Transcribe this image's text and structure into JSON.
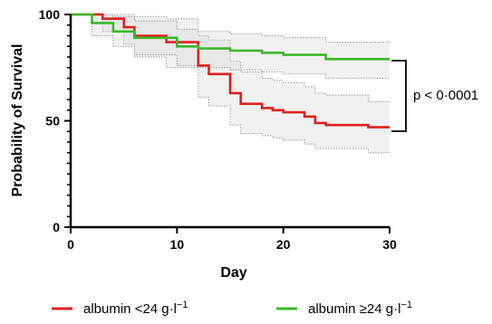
{
  "chart_data": {
    "type": "line",
    "step": true,
    "xlabel": "Day",
    "ylabel": "Probability of Survival",
    "xlim": [
      0,
      30
    ],
    "ylim": [
      0,
      100
    ],
    "x_ticks": [
      0,
      10,
      20,
      30
    ],
    "y_ticks": [
      0,
      50,
      100
    ],
    "grid": false,
    "legend_position": "bottom",
    "annotation": {
      "text": "p < 0·0001"
    },
    "series": [
      {
        "name": "albumin <24 g·l",
        "name_sup": "−1",
        "color": "#e02020",
        "x": [
          0,
          3,
          5,
          6,
          9,
          12,
          13,
          15,
          16,
          18,
          19,
          20,
          22,
          23,
          24,
          28,
          30
        ],
        "y": [
          100,
          98,
          94,
          90,
          87,
          76,
          72,
          63,
          58,
          56,
          55,
          54,
          52,
          49,
          48,
          47,
          47
        ],
        "ci_upper": [
          100,
          100,
          100,
          99,
          98,
          90,
          88,
          78,
          73,
          70,
          69,
          68,
          66,
          63,
          62,
          59,
          59
        ],
        "ci_lower": [
          100,
          92,
          86,
          80,
          75,
          61,
          57,
          48,
          44,
          43,
          42,
          41,
          39,
          37,
          37,
          35,
          35
        ]
      },
      {
        "name": "albumin ≥24 g·l",
        "name_sup": "−1",
        "color": "#3cb829",
        "x": [
          0,
          2,
          4,
          6,
          10,
          12,
          15,
          18,
          20,
          24,
          30
        ],
        "y": [
          100,
          96,
          92,
          89,
          85,
          84,
          83,
          82,
          81,
          79,
          79
        ],
        "ci_upper": [
          100,
          100,
          99,
          97,
          93,
          92,
          91,
          90,
          89,
          87,
          87
        ],
        "ci_lower": [
          100,
          90,
          85,
          81,
          76,
          75,
          74,
          73,
          72,
          70,
          70
        ]
      }
    ]
  }
}
